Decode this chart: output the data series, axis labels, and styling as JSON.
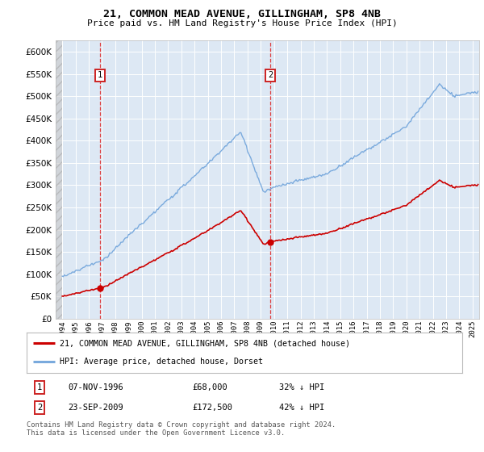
{
  "title": "21, COMMON MEAD AVENUE, GILLINGHAM, SP8 4NB",
  "subtitle": "Price paid vs. HM Land Registry's House Price Index (HPI)",
  "legend_line1": "21, COMMON MEAD AVENUE, GILLINGHAM, SP8 4NB (detached house)",
  "legend_line2": "HPI: Average price, detached house, Dorset",
  "footnote": "Contains HM Land Registry data © Crown copyright and database right 2024.\nThis data is licensed under the Open Government Licence v3.0.",
  "transaction1_date": "07-NOV-1996",
  "transaction1_price": "£68,000",
  "transaction1_hpi": "32% ↓ HPI",
  "transaction1_year": 1996.86,
  "transaction1_value": 68000,
  "transaction2_date": "23-SEP-2009",
  "transaction2_price": "£172,500",
  "transaction2_hpi": "42% ↓ HPI",
  "transaction2_year": 2009.72,
  "transaction2_value": 172500,
  "hpi_color": "#7aaadd",
  "property_color": "#cc0000",
  "plot_bg": "#dde8f4",
  "ylim": [
    0,
    625000
  ],
  "yticks": [
    0,
    50000,
    100000,
    150000,
    200000,
    250000,
    300000,
    350000,
    400000,
    450000,
    500000,
    550000,
    600000
  ],
  "xlim_start": 1993.5,
  "xlim_end": 2025.5
}
